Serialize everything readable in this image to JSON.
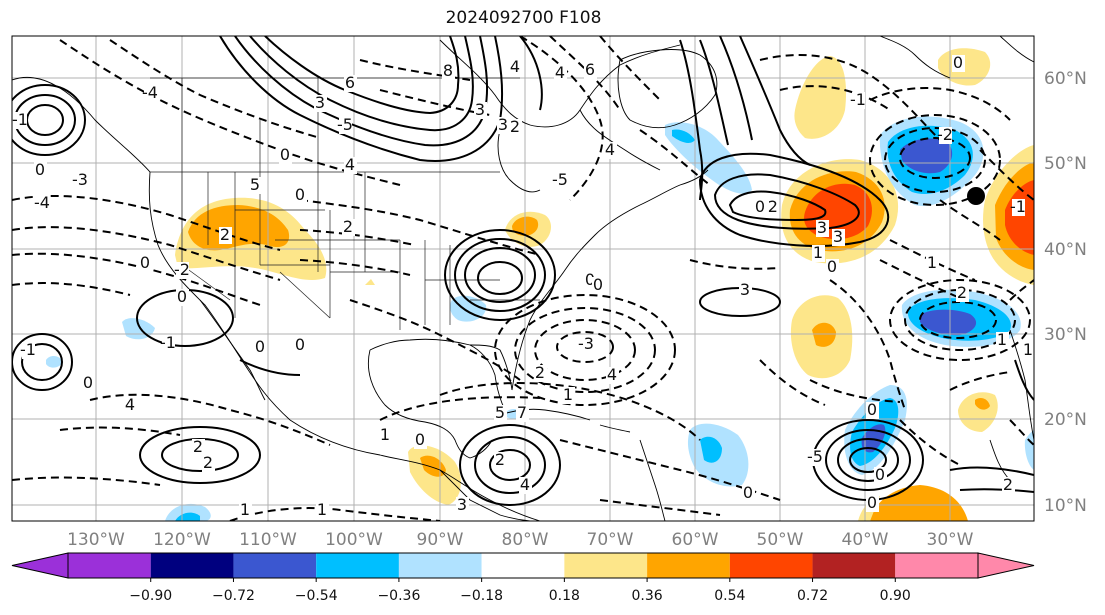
{
  "title": "2024092700 F108",
  "map": {
    "lat_labels": [
      "60°N",
      "50°N",
      "40°N",
      "30°N",
      "20°N",
      "10°N"
    ],
    "lon_labels": [
      "130°W",
      "120°W",
      "110°W",
      "100°W",
      "90°W",
      "80°W",
      "70°W",
      "60°W",
      "50°W",
      "40°W",
      "30°W"
    ],
    "contour_labels": [
      "8",
      "4",
      "3",
      "6",
      "4",
      "0",
      "5",
      "6",
      "2",
      "-4",
      "-3",
      "0",
      "-1",
      "-4",
      "-5",
      "4",
      "-5",
      "3",
      "3",
      "4",
      "0",
      "2",
      "2",
      "-2",
      "0",
      "-1",
      "0",
      "-1",
      "2",
      "2",
      "0",
      "7",
      "5",
      "4",
      "3",
      "2",
      "1",
      "1",
      "1",
      "0",
      "-3",
      "2",
      "4",
      "4",
      "3",
      "3",
      "3",
      "1",
      "0",
      "1",
      "0",
      "0",
      "0",
      "0",
      "-1",
      "-2",
      "2",
      "1",
      "1",
      "-1",
      "0",
      "1",
      "0",
      "-2",
      "0",
      "-5",
      "2",
      "0",
      "0",
      "0"
    ]
  },
  "colorbar": {
    "labels": [
      "−0.90",
      "−0.72",
      "−0.54",
      "−0.36",
      "−0.18",
      "0.18",
      "0.36",
      "0.54",
      "0.72",
      "0.90"
    ],
    "colors": [
      "#9b30d9",
      "#00007f",
      "#3b57d0",
      "#00bfff",
      "#b0e2ff",
      "#ffffff",
      "#fde68a",
      "#ffa500",
      "#ff4500",
      "#b22222",
      "#ff88aa"
    ],
    "under_color": "#9b30d9",
    "over_color": "#ff88aa"
  },
  "marker": {
    "icon": "black-dot-icon"
  }
}
